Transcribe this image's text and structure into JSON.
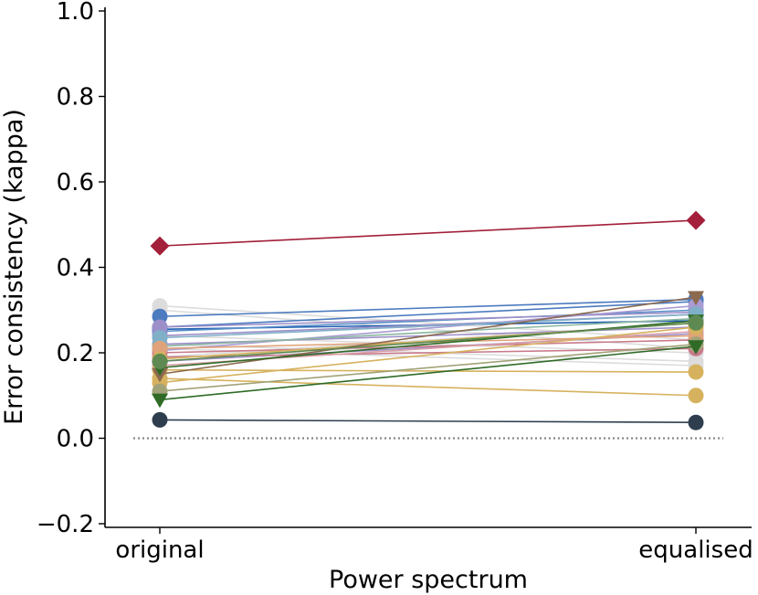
{
  "chart_data": {
    "type": "line",
    "title": "",
    "xlabel": "Power spectrum",
    "ylabel": "Error consistency (kappa)",
    "categories": [
      "original",
      "equalised"
    ],
    "ylim": [
      -0.2,
      1.0
    ],
    "yticks": [
      "−0.2",
      "0.0",
      "0.2",
      "0.4",
      "0.6",
      "0.8",
      "1.0"
    ],
    "ytick_values": [
      -0.2,
      0.0,
      0.2,
      0.4,
      0.6,
      0.8,
      1.0
    ],
    "grid": false,
    "reference_line": {
      "y": 0.0,
      "style": "dotted",
      "color": "#888888"
    },
    "series": [
      {
        "values": [
          0.31,
          0.23
        ],
        "color": "#dcdcdc",
        "marker": "circle"
      },
      {
        "values": [
          0.3,
          0.21
        ],
        "color": "#dcdcdc",
        "marker": "circle"
      },
      {
        "values": [
          0.24,
          0.2
        ],
        "color": "#dcdcdc",
        "marker": "circle"
      },
      {
        "values": [
          0.21,
          0.17
        ],
        "color": "#dcdcdc",
        "marker": "circle"
      },
      {
        "values": [
          0.19,
          0.27
        ],
        "color": "#dcdcdc",
        "marker": "circle"
      },
      {
        "values": [
          0.22,
          0.18
        ],
        "color": "#dcdcdc",
        "marker": "circle"
      },
      {
        "values": [
          0.285,
          0.325
        ],
        "color": "#4c7bbf",
        "marker": "circle"
      },
      {
        "values": [
          0.26,
          0.32
        ],
        "color": "#4c7bbf",
        "marker": "circle"
      },
      {
        "values": [
          0.255,
          0.275
        ],
        "color": "#1f5fb0",
        "marker": "circle"
      },
      {
        "values": [
          0.25,
          0.3
        ],
        "color": "#5a8fc8",
        "marker": "circle"
      },
      {
        "values": [
          0.26,
          0.295
        ],
        "color": "#9d8fc9",
        "marker": "circle"
      },
      {
        "values": [
          0.24,
          0.29
        ],
        "color": "#9d8fc9",
        "marker": "circle"
      },
      {
        "values": [
          0.22,
          0.26
        ],
        "color": "#9d8fc9",
        "marker": "circle"
      },
      {
        "values": [
          0.205,
          0.31
        ],
        "color": "#a99bd4",
        "marker": "circle"
      },
      {
        "values": [
          0.18,
          0.245
        ],
        "color": "#9d8fc9",
        "marker": "circle"
      },
      {
        "values": [
          0.215,
          0.28
        ],
        "color": "#8ab5a0",
        "marker": "circle"
      },
      {
        "values": [
          0.235,
          0.29
        ],
        "color": "#7fb0c8",
        "marker": "circle"
      },
      {
        "values": [
          0.2,
          0.23
        ],
        "color": "#c97a8a",
        "marker": "circle"
      },
      {
        "values": [
          0.19,
          0.21
        ],
        "color": "#c97a8a",
        "marker": "circle"
      },
      {
        "values": [
          0.17,
          0.25
        ],
        "color": "#d9a0a8",
        "marker": "circle"
      },
      {
        "values": [
          0.21,
          0.24
        ],
        "color": "#e0a27a",
        "marker": "circle"
      },
      {
        "values": [
          0.185,
          0.27
        ],
        "color": "#d6b25e",
        "marker": "circle"
      },
      {
        "values": [
          0.16,
          0.155
        ],
        "color": "#d6b25e",
        "marker": "circle"
      },
      {
        "values": [
          0.14,
          0.1
        ],
        "color": "#d6b25e",
        "marker": "circle"
      },
      {
        "values": [
          0.13,
          0.26
        ],
        "color": "#d6b25e",
        "marker": "circle"
      },
      {
        "values": [
          0.11,
          0.22
        ],
        "color": "#a2a278",
        "marker": "circle"
      },
      {
        "values": [
          0.15,
          0.33
        ],
        "color": "#8b6a4f",
        "marker": "triangle-down"
      },
      {
        "values": [
          0.165,
          0.275
        ],
        "color": "#2f6b27",
        "marker": "triangle-down"
      },
      {
        "values": [
          0.09,
          0.215
        ],
        "color": "#2f6b27",
        "marker": "triangle-down"
      },
      {
        "values": [
          0.18,
          0.27
        ],
        "color": "#5e8a52",
        "marker": "circle"
      },
      {
        "values": [
          0.043,
          0.037
        ],
        "color": "#2f3e4e",
        "marker": "circle"
      },
      {
        "values": [
          0.45,
          0.51
        ],
        "color": "#a31f3a",
        "marker": "diamond"
      }
    ]
  }
}
